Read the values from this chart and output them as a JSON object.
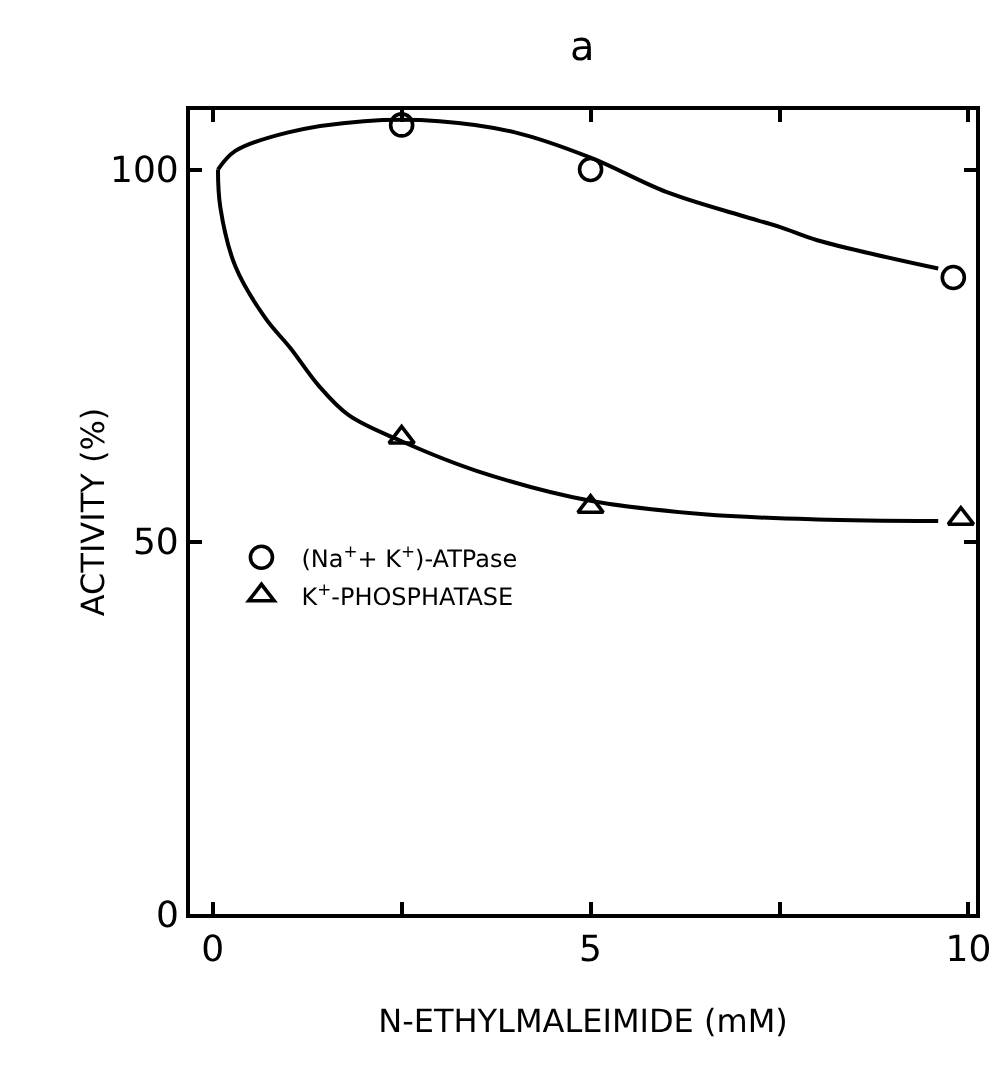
{
  "chart_data": {
    "type": "scatter",
    "title": "a",
    "xlabel": "N-ETHYLMALEIMIDE (mM)",
    "ylabel": "ACTIVITY (%)",
    "xlim": [
      -0.3,
      10.1
    ],
    "ylim": [
      0,
      108
    ],
    "xticks": [
      0,
      {
        "value": 2.5,
        "label": null
      },
      5,
      {
        "value": 7.5,
        "label": null
      },
      10
    ],
    "yticks": [
      0,
      50,
      100
    ],
    "grid": false,
    "legend": "left",
    "series": [
      {
        "type": "line",
        "color": "#000000",
        "marker": "none",
        "x": [
          0.07,
          0.3,
          1,
          2,
          3,
          4,
          5,
          6,
          7,
          7.5,
          8,
          9.6
        ],
        "values": [
          100,
          102.5,
          105,
          106.5,
          106.5,
          105,
          101.6,
          97,
          93.8,
          92.3,
          90.5,
          86.7
        ]
      },
      {
        "type": "line",
        "color": "#000000",
        "marker": "none",
        "x": [
          0.07,
          0.1,
          0.3,
          0.7,
          1.03,
          1.4,
          1.8,
          2.5,
          3.5,
          5,
          6.5,
          8,
          9.6
        ],
        "values": [
          100,
          95,
          87,
          80,
          76,
          71,
          67,
          63.5,
          59.5,
          55.5,
          53.7,
          53,
          52.8
        ]
      },
      {
        "name": "(Na$^{+}$+ K$^{+}$)-ATPase",
        "color": "#000000",
        "marker": "circle",
        "x": [
          2.5,
          5,
          9.8
        ],
        "values": [
          106,
          100,
          85.5
        ]
      },
      {
        "name": "K$^{+}$-PHOSPHATASE",
        "color": "#000000",
        "marker": "triangle",
        "x": [
          2.5,
          5,
          9.9
        ],
        "values": [
          64,
          54.7,
          53.1
        ]
      }
    ]
  }
}
